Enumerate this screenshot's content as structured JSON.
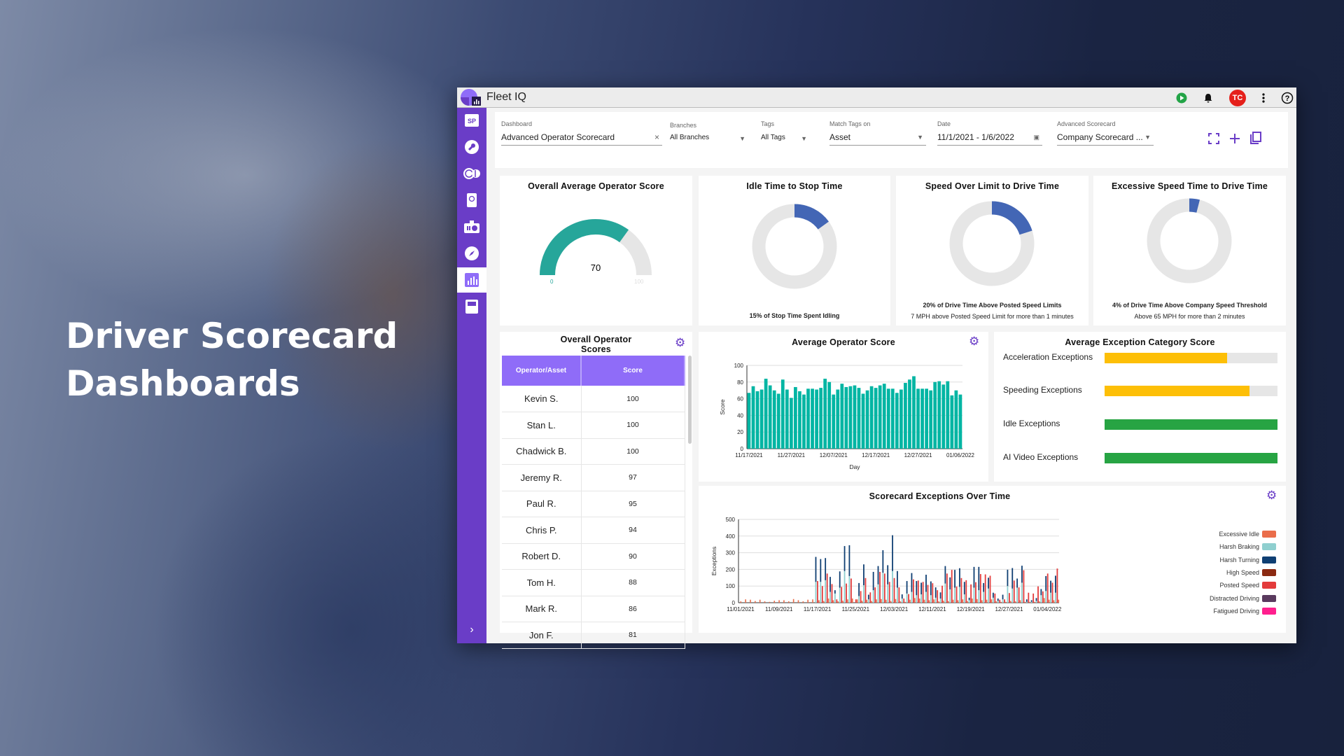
{
  "hero": {
    "line1": "Driver Scorecard",
    "line2": "Dashboards"
  },
  "app": {
    "title": "Fleet IQ",
    "avatar": "TC",
    "icons": [
      "play-icon",
      "bell-icon",
      "more-vert-icon",
      "help-icon"
    ]
  },
  "sidebar": {
    "items": [
      {
        "icon": "sp-icon",
        "label": "SP"
      },
      {
        "icon": "wrench-icon"
      },
      {
        "icon": "clock-route-icon"
      },
      {
        "icon": "tablet-icon"
      },
      {
        "icon": "dashcam-icon"
      },
      {
        "icon": "compass-icon"
      },
      {
        "icon": "chart-icon",
        "active": true
      },
      {
        "icon": "save-icon"
      }
    ],
    "expand": "›"
  },
  "filters": {
    "dashboard": {
      "label": "Dashboard",
      "value": "Advanced Operator Scorecard",
      "clear": "×"
    },
    "branches": {
      "label": "Branches",
      "value": "All Branches"
    },
    "tags": {
      "label": "Tags",
      "value": "All Tags"
    },
    "match": {
      "label": "Match Tags on",
      "value": "Asset"
    },
    "date": {
      "label": "Date",
      "value": "11/1/2021 - 1/6/2022"
    },
    "scorecard": {
      "label": "Advanced Scorecard",
      "value": "Company Scorecard ..."
    }
  },
  "colors": {
    "accent": "#6a3dc7",
    "teal": "#26a69a",
    "donut": "#4366b5",
    "yellow": "#fdbf07",
    "green": "#27a443"
  },
  "gauge": {
    "title": "Overall Average Operator Score",
    "value": 70,
    "min": "0",
    "max": "100",
    "display": "70"
  },
  "donuts": [
    {
      "title": "Idle Time to Stop Time",
      "percent": 15,
      "line1": "15% of Stop Time Spent Idling",
      "line2": ""
    },
    {
      "title": "Speed Over Limit to Drive Time",
      "percent": 20,
      "line1": "20% of Drive Time Above Posted Speed Limits",
      "line2": "7 MPH above Posted Speed Limit for more than 1 minutes"
    },
    {
      "title": "Excessive Speed Time to Drive Time",
      "percent": 4,
      "line1": "4% of Drive Time Above Company Speed Threshold",
      "line2": "Above 65 MPH for more than 2 minutes"
    }
  ],
  "table": {
    "title1": "Overall Operator",
    "title2": "Scores",
    "headers": [
      "Operator/Asset",
      "Score"
    ],
    "rows": [
      [
        "Kevin S.",
        "100"
      ],
      [
        "Stan L.",
        "100"
      ],
      [
        "Chadwick B.",
        "100"
      ],
      [
        "Jeremy R.",
        "97"
      ],
      [
        "Paul R.",
        "95"
      ],
      [
        "Chris P.",
        "94"
      ],
      [
        "Robert D.",
        "90"
      ],
      [
        "Tom H.",
        "88"
      ],
      [
        "Mark R.",
        "86"
      ],
      [
        "Jon F.",
        "81"
      ]
    ]
  },
  "categories": {
    "title": "Average Exception Category Score",
    "items": [
      {
        "label": "Acceleration Exceptions",
        "percent": 71,
        "color": "#fdbf07"
      },
      {
        "label": "Speeding Exceptions",
        "percent": 84,
        "color": "#fdbf07"
      },
      {
        "label": "Idle Exceptions",
        "percent": 100,
        "color": "#27a443"
      },
      {
        "label": "AI Video Exceptions",
        "percent": 100,
        "color": "#27a443"
      }
    ]
  },
  "chart_data": [
    {
      "type": "bar",
      "title": "Average Operator Score",
      "xlabel": "Day",
      "ylabel": "Score",
      "ylim": [
        0,
        100
      ],
      "yticks": [
        0,
        20,
        40,
        60,
        80,
        100
      ],
      "x_start": "11/17/2021",
      "x_end": "01/06/2022",
      "xtick_labels": [
        "11/17/2021",
        "11/27/2021",
        "12/07/2021",
        "12/17/2021",
        "12/27/2021",
        "01/06/2022"
      ],
      "values": [
        67,
        75,
        69,
        71,
        84,
        76,
        70,
        66,
        83,
        71,
        61,
        74,
        69,
        65,
        72,
        72,
        71,
        73,
        84,
        80,
        65,
        71,
        78,
        74,
        75,
        76,
        73,
        66,
        70,
        75,
        73,
        76,
        78,
        72,
        72,
        67,
        71,
        79,
        83,
        87,
        72,
        72,
        72,
        70,
        80,
        81,
        77,
        81,
        64,
        70,
        65
      ],
      "color": "#00b5a3",
      "grid": true
    },
    {
      "type": "bar",
      "title": "Scorecard Exceptions Over Time",
      "xlabel": "",
      "ylabel": "Exceptions",
      "ylim": [
        0,
        500
      ],
      "yticks": [
        0,
        100,
        200,
        300,
        400,
        500
      ],
      "x_start": "11/01/2021",
      "x_end": "01/06/2022",
      "xtick_labels": [
        "11/01/2021",
        "11/09/2021",
        "11/17/2021",
        "11/25/2021",
        "12/03/2021",
        "12/11/2021",
        "12/19/2021",
        "12/27/2021",
        "01/04/2022"
      ],
      "legend_position": "right",
      "grid": true,
      "series": [
        {
          "name": "Excessive Idle",
          "color": "#ea6d4a",
          "values": [
            8,
            20,
            18,
            10,
            18,
            8,
            5,
            12,
            15,
            15,
            8,
            22,
            15,
            8,
            18,
            20,
            15,
            10,
            25,
            15,
            8,
            12,
            20,
            25,
            20,
            12,
            18,
            10,
            20,
            22,
            18,
            10,
            22,
            8,
            5,
            18,
            28,
            25,
            18,
            15,
            20,
            8,
            12,
            10,
            18,
            15,
            20,
            10,
            25,
            22,
            15,
            18,
            20,
            8,
            5,
            5,
            10,
            8,
            15,
            5,
            5,
            5,
            8,
            28,
            18,
            15,
            18
          ]
        },
        {
          "name": "Harsh Braking",
          "color": "#8fcfcf",
          "values": [
            0,
            0,
            0,
            0,
            0,
            0,
            0,
            0,
            0,
            0,
            0,
            0,
            0,
            0,
            0,
            0,
            125,
            125,
            135,
            65,
            55,
            90,
            190,
            160,
            0,
            40,
            105,
            20,
            75,
            110,
            180,
            110,
            190,
            90,
            25,
            55,
            65,
            45,
            50,
            65,
            45,
            30,
            25,
            115,
            80,
            90,
            95,
            50,
            15,
            90,
            75,
            65,
            85,
            30,
            10,
            20,
            100,
            85,
            90,
            120,
            5,
            5,
            10,
            45,
            70,
            60,
            60
          ]
        },
        {
          "name": "Harsh Turning",
          "color": "#0f3f73",
          "values": [
            0,
            0,
            0,
            0,
            0,
            0,
            0,
            0,
            0,
            0,
            0,
            0,
            0,
            0,
            0,
            0,
            150,
            137,
            133,
            90,
            20,
            98,
            150,
            185,
            0,
            78,
            125,
            28,
            110,
            110,
            135,
            115,
            215,
            100,
            25,
            75,
            113,
            85,
            70,
            103,
            83,
            62,
            37,
            105,
            72,
            107,
            112,
            75,
            15,
            125,
            140,
            53,
            65,
            30,
            15,
            28,
            98,
            123,
            55,
            102,
            15,
            10,
            18,
            37,
            90,
            72,
            102
          ]
        },
        {
          "name": "High Speed",
          "color": "#8b2a12",
          "values": []
        },
        {
          "name": "Posted Speed",
          "color": "#e33b3b",
          "values": [
            0,
            0,
            0,
            0,
            0,
            0,
            0,
            0,
            0,
            0,
            0,
            0,
            0,
            0,
            0,
            0,
            130,
            100,
            175,
            112,
            20,
            95,
            115,
            145,
            20,
            70,
            148,
            62,
            92,
            185,
            175,
            125,
            148,
            92,
            25,
            52,
            140,
            133,
            125,
            107,
            117,
            75,
            102,
            175,
            197,
            97,
            148,
            135,
            110,
            123,
            172,
            170,
            162,
            55,
            18,
            20,
            58,
            133,
            92,
            195,
            60,
            55,
            98,
            68,
            175,
            120,
            205
          ]
        },
        {
          "name": "Distracted Driving",
          "color": "#5a3a5e",
          "values": []
        },
        {
          "name": "Fatigued Driving",
          "color": "#ff1f8e",
          "values": []
        }
      ]
    }
  ]
}
